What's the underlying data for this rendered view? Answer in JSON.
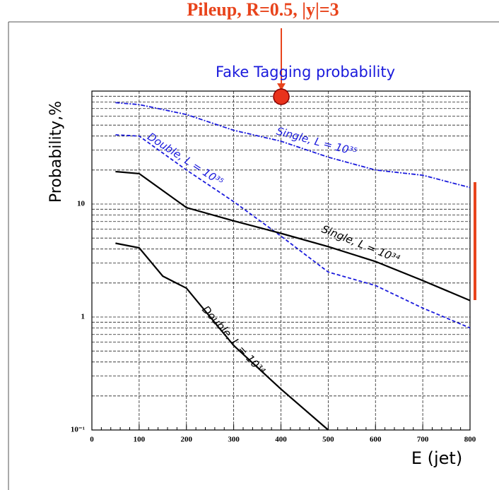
{
  "chart_data": {
    "type": "line",
    "header": "Pileup, R=0.5, |y|=3",
    "title": "Fake Tagging probability",
    "x_label": "E (jet)",
    "y_label": "Probability,%",
    "log_y": true,
    "grid": true,
    "xlim": [
      0,
      800
    ],
    "xticks": [
      0,
      100,
      200,
      300,
      400,
      500,
      600,
      700,
      800
    ],
    "ylim": [
      0.1,
      100
    ],
    "yticks": [
      {
        "value": 0.1,
        "label": "10⁻¹"
      },
      1,
      10
    ],
    "series": [
      {
        "name": "Single, L = 10³⁵",
        "color": "#1a1adc",
        "dash": "dashdot",
        "x": [
          50,
          100,
          200,
          300,
          400,
          500,
          600,
          700,
          800
        ],
        "values": [
          79,
          76,
          62,
          45,
          36,
          26,
          20,
          18,
          14
        ]
      },
      {
        "name": "Double, L = 10³⁵",
        "color": "#1a1adc",
        "dash": "dash",
        "x": [
          50,
          100,
          200,
          300,
          400,
          500,
          600,
          700,
          800
        ],
        "values": [
          41,
          40,
          20,
          10.5,
          5.2,
          2.5,
          1.9,
          1.2,
          0.8
        ]
      },
      {
        "name": "Single, L = 10³⁴",
        "color": "#000000",
        "dash": "solid",
        "x": [
          50,
          100,
          200,
          300,
          400,
          500,
          600,
          700,
          800
        ],
        "values": [
          19.4,
          18.6,
          9.3,
          7.1,
          5.5,
          4.2,
          3.1,
          2.1,
          1.4
        ]
      },
      {
        "name": "Double, L = 10³⁴",
        "color": "#000000",
        "dash": "solid",
        "x": [
          50,
          100,
          150,
          200,
          300,
          400,
          500
        ],
        "values": [
          4.5,
          4.1,
          2.3,
          1.8,
          0.56,
          0.23,
          0.1
        ]
      }
    ]
  }
}
